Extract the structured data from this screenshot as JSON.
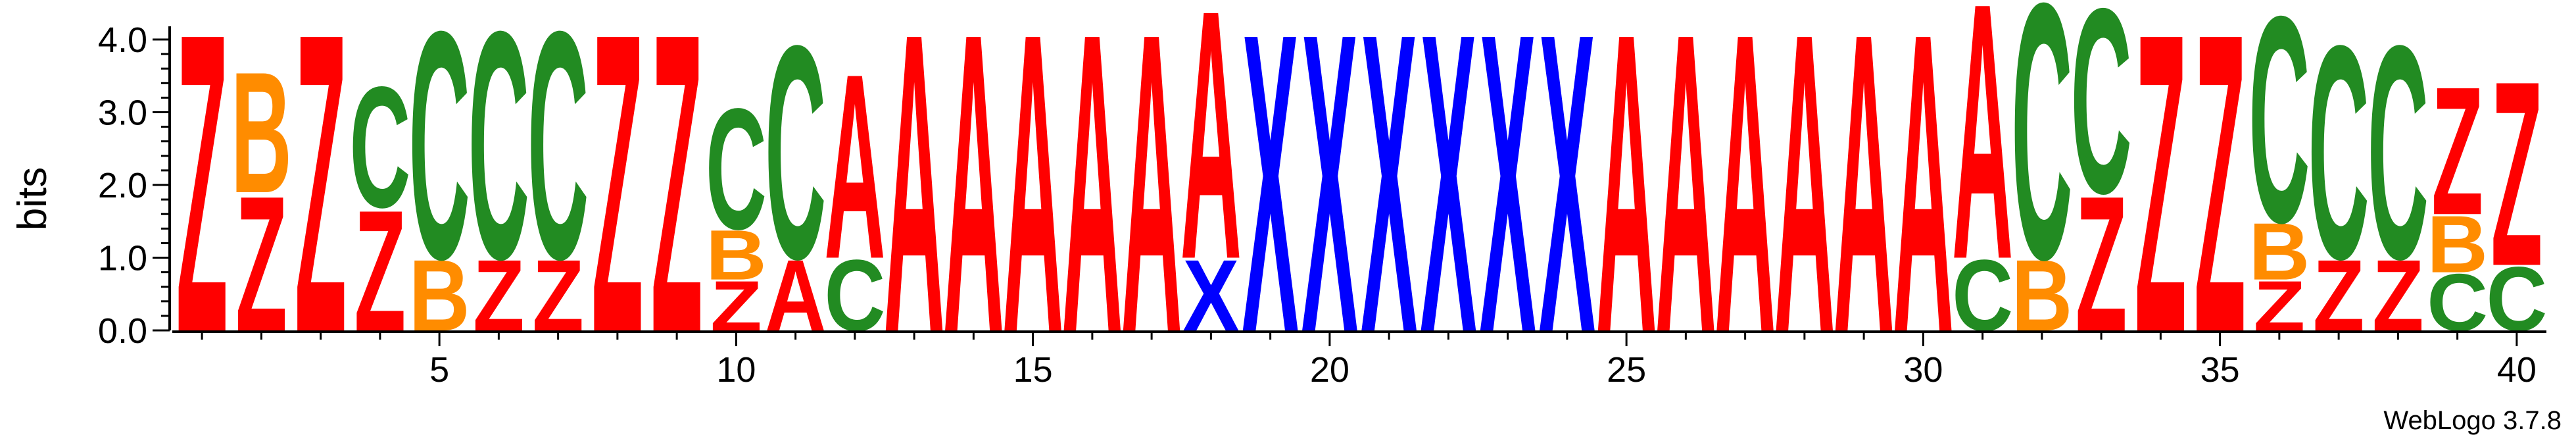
{
  "chart_data": {
    "type": "sequence-logo",
    "title": "",
    "xlabel": "",
    "ylabel": "bits",
    "ylim": [
      0,
      4.0
    ],
    "xlim": [
      1,
      40
    ],
    "y_ticks": [
      "0.0",
      "1.0",
      "2.0",
      "3.0",
      "4.0"
    ],
    "x_ticks": [
      "5",
      "10",
      "15",
      "20",
      "25",
      "30",
      "35",
      "40"
    ],
    "credit": "WebLogo 3.7.8",
    "colors": {
      "A": "#ff0000",
      "Z": "#ff0000",
      "B": "#ff8c00",
      "C": "#228b22",
      "X": "#0000ff"
    },
    "positions": [
      {
        "pos": 1,
        "stack": [
          [
            "Z",
            4.2
          ]
        ]
      },
      {
        "pos": 2,
        "stack": [
          [
            "Z",
            1.9
          ],
          [
            "B",
            1.7
          ]
        ]
      },
      {
        "pos": 3,
        "stack": [
          [
            "Z",
            4.2
          ]
        ]
      },
      {
        "pos": 4,
        "stack": [
          [
            "Z",
            1.7
          ],
          [
            "C",
            1.7
          ]
        ]
      },
      {
        "pos": 5,
        "stack": [
          [
            "B",
            1.0
          ],
          [
            "C",
            3.2
          ]
        ]
      },
      {
        "pos": 6,
        "stack": [
          [
            "Z",
            1.0
          ],
          [
            "C",
            3.2
          ]
        ]
      },
      {
        "pos": 7,
        "stack": [
          [
            "Z",
            1.0
          ],
          [
            "C",
            3.2
          ]
        ]
      },
      {
        "pos": 8,
        "stack": [
          [
            "Z",
            4.2
          ]
        ]
      },
      {
        "pos": 9,
        "stack": [
          [
            "Z",
            4.2
          ]
        ]
      },
      {
        "pos": 10,
        "stack": [
          [
            "Z",
            0.7
          ],
          [
            "B",
            0.7
          ],
          [
            "C",
            1.7
          ]
        ]
      },
      {
        "pos": 11,
        "stack": [
          [
            "A",
            1.0
          ],
          [
            "C",
            3.0
          ]
        ]
      },
      {
        "pos": 12,
        "stack": [
          [
            "C",
            1.0
          ],
          [
            "A",
            2.6
          ]
        ]
      },
      {
        "pos": 13,
        "stack": [
          [
            "A",
            4.2
          ]
        ]
      },
      {
        "pos": 14,
        "stack": [
          [
            "A",
            4.2
          ]
        ]
      },
      {
        "pos": 15,
        "stack": [
          [
            "A",
            4.2
          ]
        ]
      },
      {
        "pos": 16,
        "stack": [
          [
            "A",
            4.2
          ]
        ]
      },
      {
        "pos": 17,
        "stack": [
          [
            "A",
            4.2
          ]
        ]
      },
      {
        "pos": 18,
        "stack": [
          [
            "X",
            1.0
          ],
          [
            "A",
            3.5
          ]
        ]
      },
      {
        "pos": 19,
        "stack": [
          [
            "X",
            4.2
          ]
        ]
      },
      {
        "pos": 20,
        "stack": [
          [
            "X",
            4.2
          ]
        ]
      },
      {
        "pos": 21,
        "stack": [
          [
            "X",
            4.2
          ]
        ]
      },
      {
        "pos": 22,
        "stack": [
          [
            "X",
            4.2
          ]
        ]
      },
      {
        "pos": 23,
        "stack": [
          [
            "X",
            4.2
          ]
        ]
      },
      {
        "pos": 24,
        "stack": [
          [
            "X",
            4.2
          ]
        ]
      },
      {
        "pos": 25,
        "stack": [
          [
            "A",
            4.2
          ]
        ]
      },
      {
        "pos": 26,
        "stack": [
          [
            "A",
            4.2
          ]
        ]
      },
      {
        "pos": 27,
        "stack": [
          [
            "A",
            4.2
          ]
        ]
      },
      {
        "pos": 28,
        "stack": [
          [
            "A",
            4.2
          ]
        ]
      },
      {
        "pos": 29,
        "stack": [
          [
            "A",
            4.2
          ]
        ]
      },
      {
        "pos": 30,
        "stack": [
          [
            "A",
            4.2
          ]
        ]
      },
      {
        "pos": 31,
        "stack": [
          [
            "C",
            1.0
          ],
          [
            "A",
            3.6
          ]
        ]
      },
      {
        "pos": 32,
        "stack": [
          [
            "B",
            1.0
          ],
          [
            "C",
            3.6
          ]
        ]
      },
      {
        "pos": 33,
        "stack": [
          [
            "Z",
            1.9
          ],
          [
            "C",
            2.6
          ]
        ]
      },
      {
        "pos": 34,
        "stack": [
          [
            "Z",
            4.2
          ]
        ]
      },
      {
        "pos": 35,
        "stack": [
          [
            "Z",
            4.2
          ]
        ]
      },
      {
        "pos": 36,
        "stack": [
          [
            "Z",
            0.7
          ],
          [
            "B",
            0.8
          ],
          [
            "C",
            2.9
          ]
        ]
      },
      {
        "pos": 37,
        "stack": [
          [
            "Z",
            1.0
          ],
          [
            "C",
            3.0
          ]
        ]
      },
      {
        "pos": 38,
        "stack": [
          [
            "Z",
            1.0
          ],
          [
            "C",
            3.0
          ]
        ]
      },
      {
        "pos": 39,
        "stack": [
          [
            "C",
            0.8
          ],
          [
            "B",
            0.8
          ],
          [
            "Z",
            1.8
          ]
        ]
      },
      {
        "pos": 40,
        "stack": [
          [
            "C",
            0.9
          ],
          [
            "Z",
            2.6
          ]
        ]
      }
    ]
  }
}
